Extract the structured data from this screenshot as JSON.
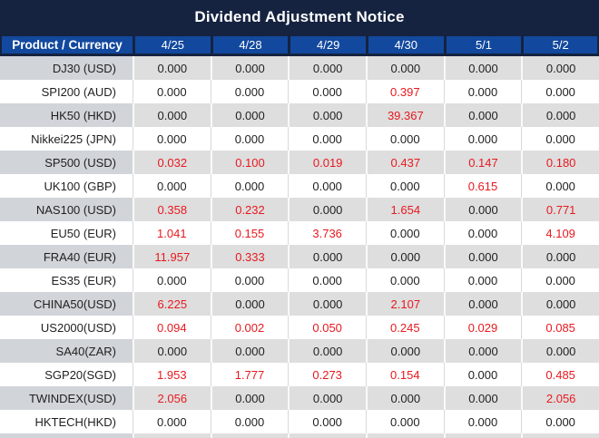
{
  "title": "Dividend Adjustment Notice",
  "colors": {
    "title_bar_navy": "#152240",
    "header_blue": "#12499e",
    "highlight_red": "#e8191f",
    "stripe_gray": "#dedede",
    "stripe_gray_label": "#d1d4d9",
    "row_white": "#ffffff"
  },
  "chart_data": {
    "type": "table",
    "title": "Dividend Adjustment Notice",
    "columns": [
      "Product / Currency",
      "4/25",
      "4/28",
      "4/29",
      "4/30",
      "5/1",
      "5/2"
    ],
    "rows": [
      {
        "product": "DJ30 (USD)",
        "values": [
          "0.000",
          "0.000",
          "0.000",
          "0.000",
          "0.000",
          "0.000"
        ]
      },
      {
        "product": "SPI200 (AUD)",
        "values": [
          "0.000",
          "0.000",
          "0.000",
          "0.397",
          "0.000",
          "0.000"
        ]
      },
      {
        "product": "HK50 (HKD)",
        "values": [
          "0.000",
          "0.000",
          "0.000",
          "39.367",
          "0.000",
          "0.000"
        ]
      },
      {
        "product": "Nikkei225 (JPN)",
        "values": [
          "0.000",
          "0.000",
          "0.000",
          "0.000",
          "0.000",
          "0.000"
        ]
      },
      {
        "product": "SP500 (USD)",
        "values": [
          "0.032",
          "0.100",
          "0.019",
          "0.437",
          "0.147",
          "0.180"
        ]
      },
      {
        "product": "UK100 (GBP)",
        "values": [
          "0.000",
          "0.000",
          "0.000",
          "0.000",
          "0.615",
          "0.000"
        ]
      },
      {
        "product": "NAS100 (USD)",
        "values": [
          "0.358",
          "0.232",
          "0.000",
          "1.654",
          "0.000",
          "0.771"
        ]
      },
      {
        "product": "EU50 (EUR)",
        "values": [
          "1.041",
          "0.155",
          "3.736",
          "0.000",
          "0.000",
          "4.109"
        ]
      },
      {
        "product": "FRA40 (EUR)",
        "values": [
          "11.957",
          "0.333",
          "0.000",
          "0.000",
          "0.000",
          "0.000"
        ]
      },
      {
        "product": "ES35 (EUR)",
        "values": [
          "0.000",
          "0.000",
          "0.000",
          "0.000",
          "0.000",
          "0.000"
        ]
      },
      {
        "product": "CHINA50(USD)",
        "values": [
          "6.225",
          "0.000",
          "0.000",
          "2.107",
          "0.000",
          "0.000"
        ]
      },
      {
        "product": "US2000(USD)",
        "values": [
          "0.094",
          "0.002",
          "0.050",
          "0.245",
          "0.029",
          "0.085"
        ]
      },
      {
        "product": "SA40(ZAR)",
        "values": [
          "0.000",
          "0.000",
          "0.000",
          "0.000",
          "0.000",
          "0.000"
        ]
      },
      {
        "product": "SGP20(SGD)",
        "values": [
          "1.953",
          "1.777",
          "0.273",
          "0.154",
          "0.000",
          "0.485"
        ]
      },
      {
        "product": "TWINDEX(USD)",
        "values": [
          "2.056",
          "0.000",
          "0.000",
          "0.000",
          "0.000",
          "2.056"
        ]
      },
      {
        "product": "HKTECH(HKD)",
        "values": [
          "0.000",
          "0.000",
          "0.000",
          "0.000",
          "0.000",
          "0.000"
        ]
      }
    ],
    "layout_hints": {
      "zebra_striping": "alternating gray/white rows starting gray",
      "value_color_rule": "non-zero values rendered in red, zeros in black",
      "first_column_alignment": "right",
      "value_alignment": "center"
    }
  }
}
